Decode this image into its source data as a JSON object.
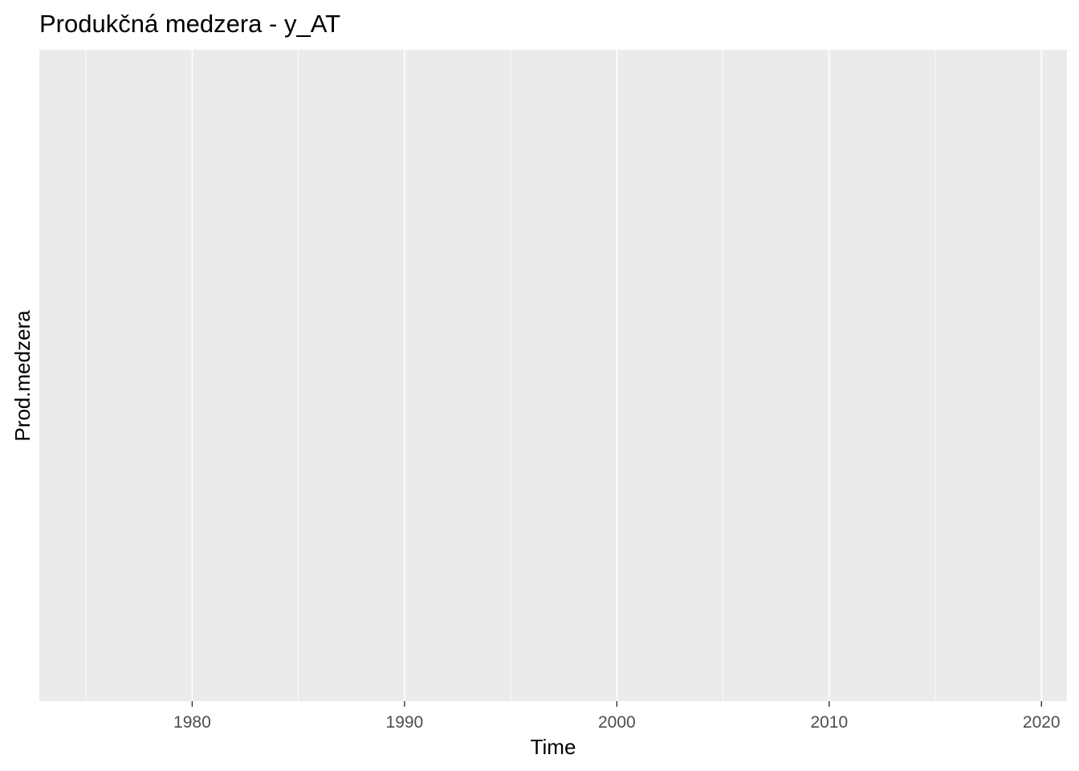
{
  "chart_data": {
    "type": "line",
    "title": "Produkčná medzera - y_AT",
    "xlabel": "Time",
    "ylabel": "Prod.medzera",
    "x_major_ticks": [
      1980,
      1990,
      2000,
      2010,
      2020
    ],
    "x_minor_ticks": [
      1975,
      1985,
      1995,
      2005,
      2015
    ],
    "x_tick_labels": [
      "1980",
      "1990",
      "2000",
      "2010",
      "2020"
    ],
    "xlim": [
      1972.8,
      2021.2
    ],
    "y_tick_labels": [],
    "series": [],
    "grid": true,
    "panel_background": "#EBEBEB",
    "gridline_color": "#FFFFFF",
    "tick_label_color": "#4D4D4D",
    "text_color": "#000000"
  }
}
